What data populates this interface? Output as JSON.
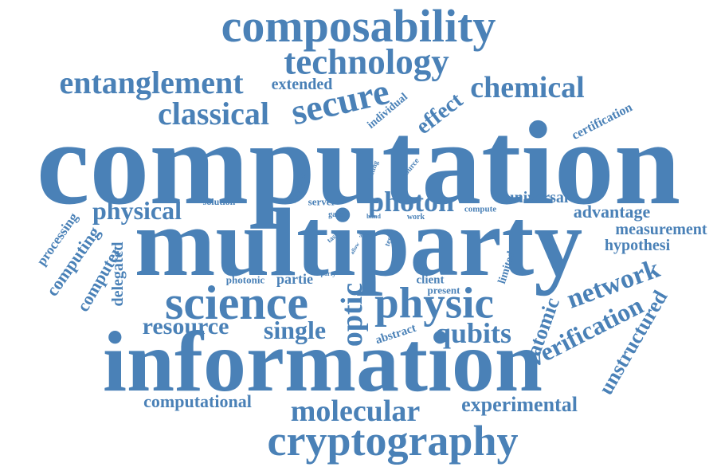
{
  "colors": {
    "word": "#4a81b7",
    "background": "#ffffff"
  },
  "words": [
    "computation",
    "multiparty",
    "information",
    "science",
    "physic",
    "cryptography",
    "composability",
    "technology",
    "entanglement",
    "chemical",
    "secure",
    "classical",
    "photon",
    "physical",
    "molecular",
    "resource",
    "single",
    "qubits",
    "optic",
    "network",
    "verification",
    "experimental",
    "computational",
    "unstructured",
    "atomic",
    "advantage",
    "measurement",
    "hypothesi",
    "universal",
    "effect",
    "extended",
    "individual",
    "certification",
    "computing",
    "processing",
    "computer",
    "delegated",
    "partie",
    "photonic",
    "client",
    "present",
    "abstract",
    "limited",
    "solution",
    "server",
    "function",
    "gate",
    "blind",
    "work",
    "compute",
    "source",
    "setting",
    "task",
    "allow",
    "able",
    "test",
    "party"
  ]
}
